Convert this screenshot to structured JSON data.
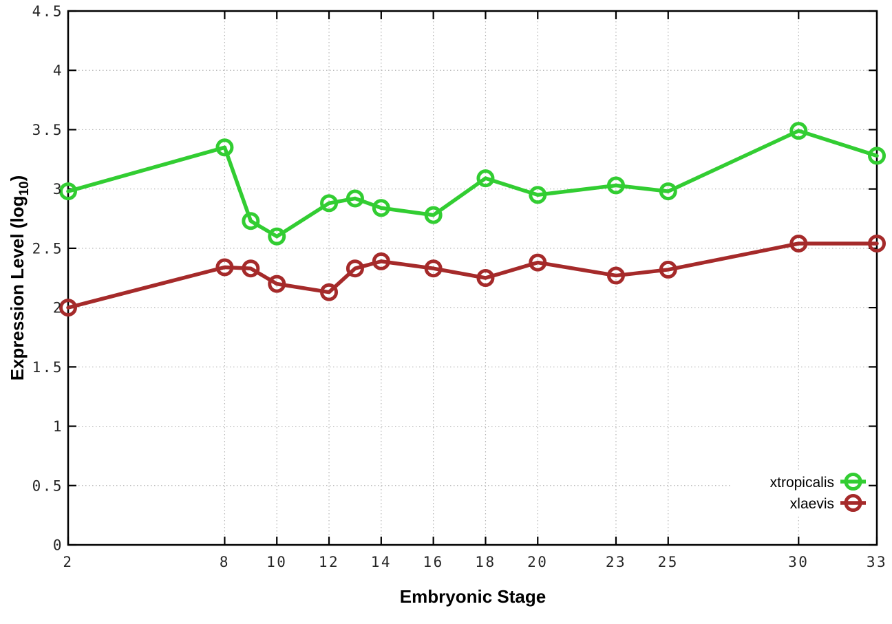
{
  "chart_data": {
    "type": "line",
    "title": "",
    "xlabel": "Embryonic Stage",
    "ylabel": "Expression Level (log10)",
    "xlim": [
      2,
      33
    ],
    "ylim": [
      0,
      4.5
    ],
    "grid": true,
    "legend_position": "bottom-right",
    "x": [
      2,
      8,
      9,
      10,
      12,
      13,
      14,
      16,
      18,
      20,
      23,
      25,
      30,
      33
    ],
    "x_tick_values": [
      2,
      8,
      10,
      12,
      14,
      16,
      18,
      20,
      23,
      25,
      30,
      33
    ],
    "x_tick_labels": [
      "2",
      "8",
      "10",
      "12",
      "14",
      "16",
      "18",
      "20",
      "23",
      "25",
      "30",
      "33"
    ],
    "y_tick_values": [
      0,
      0.5,
      1,
      1.5,
      2,
      2.5,
      3,
      3.5,
      4,
      4.5
    ],
    "y_tick_labels": [
      "0",
      "0.5",
      "1",
      "1.5",
      "2",
      "2.5",
      "3",
      "3.5",
      "4",
      "4.5"
    ],
    "series": [
      {
        "name": "xtropicalis",
        "color": "#32cd32",
        "values": [
          2.98,
          3.35,
          2.73,
          2.6,
          2.88,
          2.92,
          2.84,
          2.78,
          3.09,
          2.95,
          3.03,
          2.98,
          3.49,
          3.28
        ]
      },
      {
        "name": "xlaevis",
        "color": "#a52a2a",
        "values": [
          2.0,
          2.34,
          2.33,
          2.2,
          2.13,
          2.33,
          2.39,
          2.33,
          2.25,
          2.38,
          2.27,
          2.32,
          2.54,
          2.54
        ]
      }
    ]
  },
  "labels": {
    "xlabel": "Embryonic Stage",
    "ylabel_prefix": "Expression Level (log",
    "ylabel_sub": "10",
    "ylabel_suffix": ")"
  },
  "colors": {
    "grid": "#b3b3b3",
    "axis": "#000000",
    "tick_text": "#262626",
    "background": "#ffffff"
  }
}
